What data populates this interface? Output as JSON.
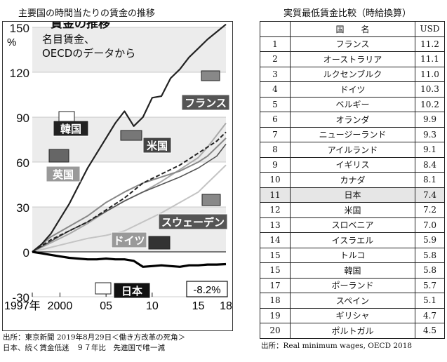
{
  "left_title": "主要国の時間当たりの賃金の推移",
  "right_title": "実質最低賃金比較（時給換算）",
  "left_source": [
    "出所：東京新聞 2019年8月29日＜働き方改革の死角＞",
    "日本、続く賃金低迷　９７年比　先進国で唯一減"
  ],
  "right_source": "出所：Real minimum wages, OECD 2018",
  "chart_data": {
    "type": "line",
    "title_partial": "賃金の推移",
    "subtitle": [
      "名目賃金、",
      "OECDのデータから"
    ],
    "y_unit": "%",
    "ylim": [
      -30,
      150
    ],
    "yticks": [
      "150",
      "120",
      "90",
      "60",
      "30",
      "0",
      "-30"
    ],
    "xlim": [
      1997,
      2018
    ],
    "xticks": [
      {
        "x": 1997,
        "label": "1997年"
      },
      {
        "x": 2000,
        "label": "2000"
      },
      {
        "x": 2005,
        "label": "05"
      },
      {
        "x": 2010,
        "label": "10"
      },
      {
        "x": 2015,
        "label": "15"
      },
      {
        "x": 2018,
        "label": "18"
      }
    ],
    "japan_end_label": "-8.2%",
    "series": [
      {
        "name": "韓国",
        "color": "#222222",
        "dashed": false,
        "width": 2.2,
        "x": [
          1997,
          1998,
          1999,
          2000,
          2001,
          2002,
          2003,
          2004,
          2005,
          2006,
          2007,
          2008,
          2009,
          2010,
          2011,
          2012,
          2013,
          2014,
          2015,
          2016,
          2017,
          2018
        ],
        "y": [
          0,
          5,
          12,
          22,
          32,
          44,
          56,
          66,
          76,
          86,
          94,
          84,
          90,
          103,
          104,
          116,
          122,
          130,
          136,
          142,
          147,
          152
        ]
      },
      {
        "name": "フランス",
        "color": "#aaaaaa",
        "dashed": false,
        "width": 2.0,
        "x": [
          1997,
          1999,
          2001,
          2003,
          2005,
          2007,
          2009,
          2011,
          2013,
          2015,
          2016,
          2017,
          2018
        ],
        "y": [
          0,
          6,
          12,
          19,
          27,
          34,
          40,
          47,
          55,
          63,
          70,
          78,
          86
        ]
      },
      {
        "name": "米国",
        "color": "#222222",
        "dashed": true,
        "width": 2.0,
        "x": [
          1997,
          1999,
          2001,
          2003,
          2005,
          2007,
          2009,
          2011,
          2013,
          2015,
          2016,
          2017,
          2018
        ],
        "y": [
          0,
          8,
          14,
          20,
          28,
          36,
          46,
          52,
          58,
          66,
          70,
          74,
          80
        ]
      },
      {
        "name": "英国",
        "color": "#888888",
        "dashed": false,
        "width": 2.0,
        "x": [
          1997,
          1999,
          2001,
          2003,
          2005,
          2007,
          2009,
          2011,
          2013,
          2015,
          2016,
          2017,
          2018
        ],
        "y": [
          0,
          10,
          17,
          24,
          33,
          40,
          46,
          50,
          54,
          60,
          64,
          70,
          76
        ]
      },
      {
        "name": "スウェーデン",
        "color": "#555555",
        "dashed": false,
        "width": 1.6,
        "x": [
          1997,
          1999,
          2001,
          2003,
          2005,
          2007,
          2009,
          2011,
          2013,
          2015,
          2016,
          2017,
          2018
        ],
        "y": [
          0,
          7,
          14,
          20,
          27,
          34,
          40,
          45,
          50,
          56,
          60,
          64,
          72
        ]
      },
      {
        "name": "ドイツ",
        "color": "#c4c4c4",
        "dashed": false,
        "width": 2.0,
        "x": [
          1997,
          1999,
          2001,
          2003,
          2005,
          2007,
          2009,
          2011,
          2013,
          2015,
          2016,
          2017,
          2018
        ],
        "y": [
          0,
          3,
          6,
          9,
          11,
          14,
          20,
          26,
          33,
          40,
          46,
          52,
          58
        ]
      },
      {
        "name": "日本",
        "color": "#000000",
        "dashed": false,
        "width": 3.2,
        "x": [
          1997,
          1998,
          1999,
          2000,
          2001,
          2002,
          2003,
          2004,
          2005,
          2006,
          2007,
          2008,
          2009,
          2010,
          2011,
          2012,
          2013,
          2014,
          2015,
          2016,
          2017,
          2018
        ],
        "y": [
          0,
          -1,
          -2,
          -3,
          -4,
          -4.5,
          -5,
          -5,
          -4.5,
          -5,
          -5,
          -6,
          -10,
          -9.5,
          -9,
          -9.5,
          -10,
          -9,
          -9,
          -8.5,
          -8.5,
          -8.2
        ]
      }
    ]
  },
  "table": {
    "headers": [
      "",
      "国　　名",
      "USD"
    ],
    "rows": [
      {
        "rank": "1",
        "country": "フランス",
        "usd": "11.2"
      },
      {
        "rank": "2",
        "country": "オーストラリア",
        "usd": "11.1"
      },
      {
        "rank": "3",
        "country": "ルクセンブルク",
        "usd": "11.0"
      },
      {
        "rank": "4",
        "country": "ドイツ",
        "usd": "10.3"
      },
      {
        "rank": "5",
        "country": "ベルギー",
        "usd": "10.2"
      },
      {
        "rank": "6",
        "country": "オランダ",
        "usd": "9.9"
      },
      {
        "rank": "7",
        "country": "ニュージーランド",
        "usd": "9.3"
      },
      {
        "rank": "8",
        "country": "アイルランド",
        "usd": "9.1"
      },
      {
        "rank": "9",
        "country": "イギリス",
        "usd": "8.4"
      },
      {
        "rank": "10",
        "country": "カナダ",
        "usd": "8.1"
      },
      {
        "rank": "11",
        "country": "日本",
        "usd": "7.4",
        "highlight": true
      },
      {
        "rank": "12",
        "country": "米国",
        "usd": "7.2"
      },
      {
        "rank": "13",
        "country": "スロベニア",
        "usd": "7.0"
      },
      {
        "rank": "14",
        "country": "イスラエル",
        "usd": "5.9"
      },
      {
        "rank": "15",
        "country": "トルコ",
        "usd": "5.8"
      },
      {
        "rank": "15",
        "country": "韓国",
        "usd": "5.8"
      },
      {
        "rank": "17",
        "country": "ポーランド",
        "usd": "5.7"
      },
      {
        "rank": "18",
        "country": "スペイン",
        "usd": "5.1"
      },
      {
        "rank": "19",
        "country": "ギリシャ",
        "usd": "4.7"
      },
      {
        "rank": "20",
        "country": "ポルトガル",
        "usd": "4.5"
      }
    ]
  }
}
